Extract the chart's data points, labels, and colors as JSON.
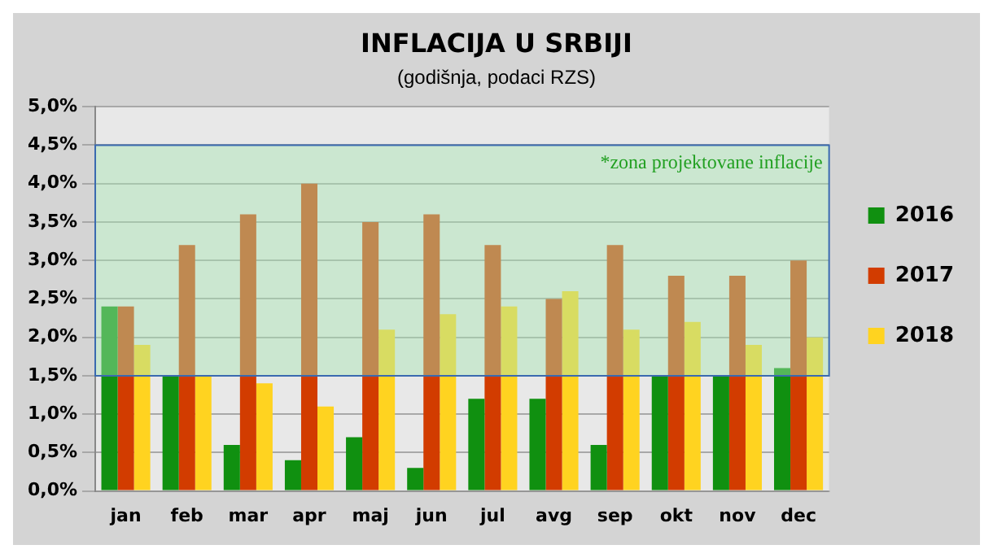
{
  "chart_data": {
    "type": "bar",
    "title": "INFLACIJA U SRBIJI",
    "subtitle": "(godišnja, podaci RZS)",
    "categories": [
      "jan",
      "feb",
      "mar",
      "apr",
      "maj",
      "jun",
      "jul",
      "avg",
      "sep",
      "okt",
      "nov",
      "dec"
    ],
    "series": [
      {
        "name": "2016",
        "color": "#109010",
        "values": [
          2.4,
          1.5,
          0.6,
          0.4,
          0.7,
          0.3,
          1.2,
          1.2,
          0.6,
          1.5,
          1.5,
          1.6
        ]
      },
      {
        "name": "2017",
        "color": "#d23c00",
        "values": [
          2.4,
          3.2,
          3.6,
          4.0,
          3.5,
          3.6,
          3.2,
          2.5,
          3.2,
          2.8,
          2.8,
          3.0
        ]
      },
      {
        "name": "2018",
        "color": "#ffd320",
        "values": [
          1.9,
          1.5,
          1.4,
          1.1,
          2.1,
          2.3,
          2.4,
          2.6,
          2.1,
          2.2,
          1.9,
          2.0
        ]
      }
    ],
    "ylim": [
      0,
      5
    ],
    "yticks": [
      {
        "value": 0,
        "label": "0,0%"
      },
      {
        "value": 0.5,
        "label": "0,5%"
      },
      {
        "value": 1,
        "label": "1,0%"
      },
      {
        "value": 1.5,
        "label": "1,5%"
      },
      {
        "value": 2,
        "label": "2,0%"
      },
      {
        "value": 2.5,
        "label": "2,5%"
      },
      {
        "value": 3,
        "label": "3,0%"
      },
      {
        "value": 3.5,
        "label": "3,5%"
      },
      {
        "value": 4,
        "label": "4,0%"
      },
      {
        "value": 4.5,
        "label": "4,5%"
      },
      {
        "value": 5,
        "label": "5,0%"
      }
    ],
    "bands": [
      {
        "axis": "y",
        "from": 1.5,
        "to": 4.5,
        "label": "*zona projektovane inflacije",
        "color": "#a8e6b4"
      }
    ],
    "grid": "y",
    "legend": "right"
  }
}
